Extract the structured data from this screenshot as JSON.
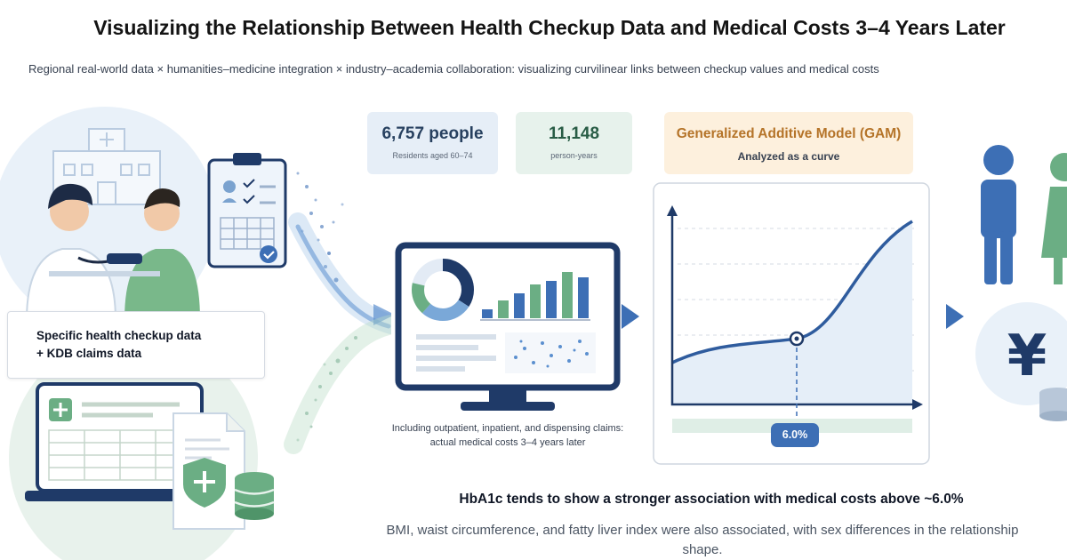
{
  "header": {
    "title": "Visualizing the Relationship Between Health Checkup Data and Medical Costs 3–4 Years Later",
    "subtitle": "Regional real-world data × humanities–medicine integration × industry–academia collaboration: visualizing curvilinear links between checkup values and medical costs"
  },
  "stats": [
    {
      "value": "6,757 people",
      "label": "Residents aged 60–74"
    },
    {
      "value": "11,148",
      "label": "person-years"
    }
  ],
  "model": {
    "title": "Generalized Additive Model (GAM)",
    "subtitle": "Analyzed as a curve"
  },
  "data_card": {
    "text": "Specific health checkup data\n+ KDB claims data"
  },
  "claims_note": "Including outpatient, inpatient, and dispensing claims: actual medical costs 3–4 years later",
  "chart": {
    "marker_label": "6.0%"
  },
  "currency_symbol": "¥",
  "findings": {
    "headline": "HbA1c tends to show a stronger association with medical costs above ~6.0%",
    "footnote": "BMI, waist circumference, and fatty liver index were also associated, with sex differences in the relationship shape."
  },
  "colors": {
    "navy": "#1f3a68",
    "blue": "#3d6fb5",
    "green": "#5c9a7c",
    "orange": "#b57429",
    "pale_blue": "#e8f0f8",
    "pale_green": "#e6f1ea"
  },
  "icons": [
    "hospital-icon",
    "doctor-icon",
    "patient-icon",
    "clipboard-icon",
    "laptop-icon",
    "shield-cross-icon",
    "database-icon",
    "monitor-icon",
    "chevron-right-icon",
    "person-icon",
    "yen-coin-icon"
  ]
}
